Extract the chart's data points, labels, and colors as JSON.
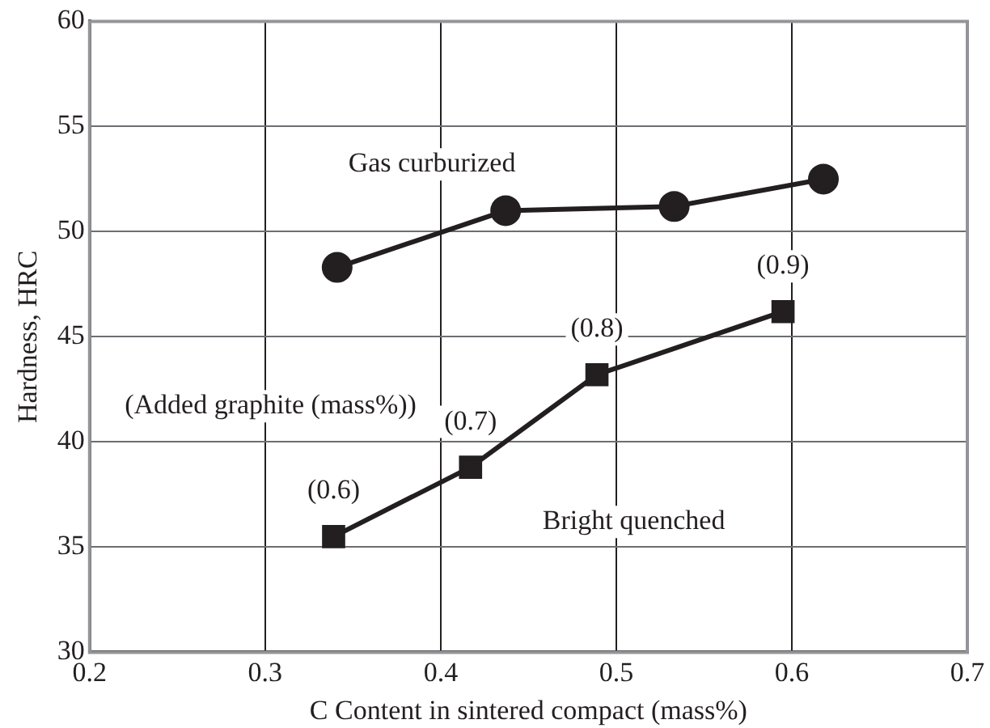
{
  "chart_data": {
    "type": "line",
    "xlabel": "C Content in sintered compact (mass%)",
    "ylabel": "Hardness, HRC",
    "xlim": [
      0.2,
      0.7
    ],
    "xticks": [
      0.2,
      0.3,
      0.4,
      0.5,
      0.6,
      0.7
    ],
    "ylim": [
      30,
      60
    ],
    "yticks": [
      30,
      35,
      40,
      45,
      50,
      55,
      60
    ],
    "grid": true,
    "legend": false,
    "series": [
      {
        "color": "#231f20",
        "marker": "circle",
        "x": [
          0.341,
          0.437,
          0.533,
          0.618
        ],
        "values": [
          48.3,
          51.0,
          51.2,
          52.5
        ]
      },
      {
        "color": "#231f20",
        "marker": "square",
        "x": [
          0.339,
          0.417,
          0.489,
          0.595
        ],
        "values": [
          35.5,
          38.8,
          43.2,
          46.2
        ]
      }
    ],
    "annotations": [
      "Gas curburized",
      "(Added graphite (mass%))",
      "Bright quenched",
      {
        "text": "(0.6)",
        "x": 0.339,
        "y": 35.5
      },
      {
        "text": "(0.7)",
        "x": 0.417,
        "y": 38.8
      },
      {
        "text": "(0.8)",
        "x": 0.489,
        "y": 43.2
      },
      {
        "text": "(0.9)",
        "x": 0.595,
        "y": 46.2
      }
    ]
  }
}
